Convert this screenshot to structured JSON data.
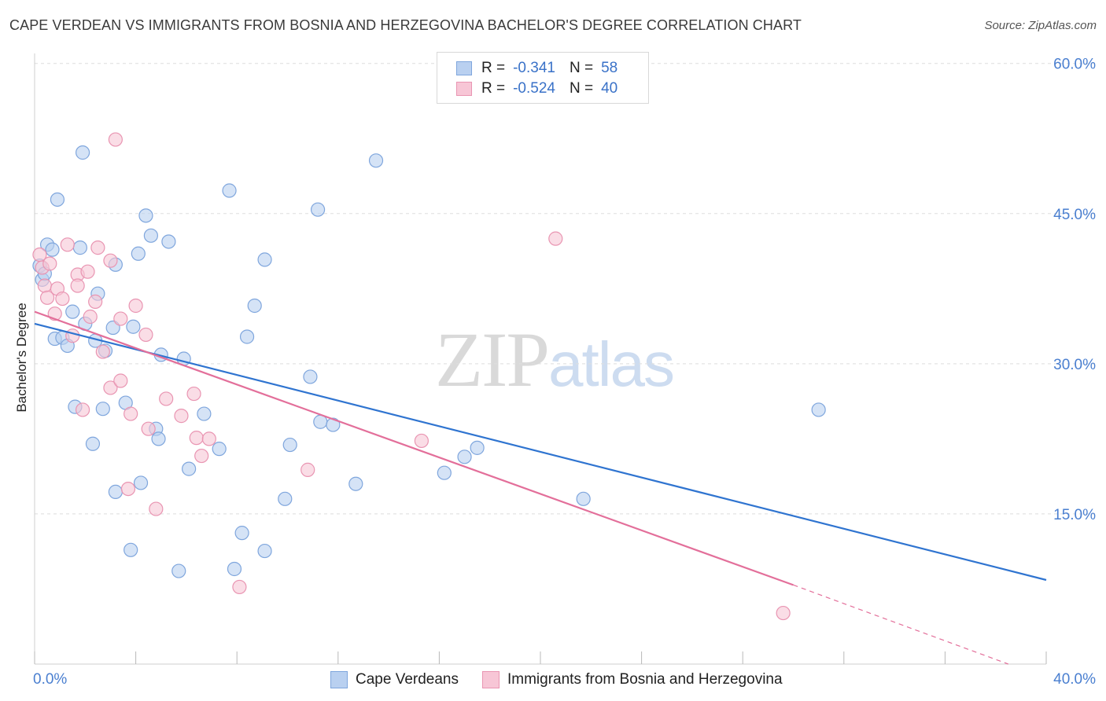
{
  "title": "CAPE VERDEAN VS IMMIGRANTS FROM BOSNIA AND HERZEGOVINA BACHELOR'S DEGREE CORRELATION CHART",
  "source": "Source: ZipAtlas.com",
  "watermark": {
    "zip": "ZIP",
    "atlas": "atlas"
  },
  "legend": {
    "rows": [
      {
        "r_label": "R =",
        "r_value": "-0.341",
        "n_label": "N =",
        "n_value": "58"
      },
      {
        "r_label": "R =",
        "r_value": "-0.524",
        "n_label": "N =",
        "n_value": "40"
      }
    ]
  },
  "colors": {
    "blue_fill": "#b9d0f0",
    "blue_stroke": "#7fa6dd",
    "blue_line": "#2f74d0",
    "pink_fill": "#f7c6d6",
    "pink_stroke": "#e995b2",
    "pink_line": "#e36f9a",
    "grid": "#dedede",
    "axis_text": "#4a7fd0"
  },
  "chart_data": {
    "type": "scatter",
    "title": "CAPE VERDEAN VS IMMIGRANTS FROM BOSNIA AND HERZEGOVINA BACHELOR'S DEGREE CORRELATION CHART",
    "xlabel": "",
    "ylabel": "Bachelor's Degree",
    "xlim": [
      0,
      40
    ],
    "ylim": [
      0,
      61
    ],
    "x_tick_labels": [
      "0.0%",
      "40.0%"
    ],
    "y_ticks": [
      15,
      30,
      45,
      60
    ],
    "y_tick_labels": [
      "15.0%",
      "30.0%",
      "45.0%",
      "60.0%"
    ],
    "grid": "horizontal",
    "series": [
      {
        "name": "Cape Verdeans",
        "color": "blue",
        "points": [
          [
            0.2,
            39.8
          ],
          [
            0.3,
            38.4
          ],
          [
            0.4,
            39.0
          ],
          [
            0.5,
            41.9
          ],
          [
            0.7,
            41.4
          ],
          [
            0.8,
            32.5
          ],
          [
            0.9,
            46.4
          ],
          [
            1.1,
            32.6
          ],
          [
            1.3,
            31.8
          ],
          [
            1.5,
            35.2
          ],
          [
            1.6,
            25.7
          ],
          [
            1.8,
            41.6
          ],
          [
            1.9,
            51.1
          ],
          [
            2.0,
            34.0
          ],
          [
            2.3,
            22.0
          ],
          [
            2.4,
            32.3
          ],
          [
            2.5,
            37.0
          ],
          [
            2.7,
            25.5
          ],
          [
            2.8,
            31.3
          ],
          [
            3.1,
            33.6
          ],
          [
            3.2,
            17.2
          ],
          [
            3.2,
            39.9
          ],
          [
            3.6,
            26.1
          ],
          [
            3.8,
            11.4
          ],
          [
            3.9,
            33.7
          ],
          [
            4.1,
            41.0
          ],
          [
            4.2,
            18.1
          ],
          [
            4.4,
            44.8
          ],
          [
            4.6,
            42.8
          ],
          [
            4.8,
            23.5
          ],
          [
            4.9,
            22.5
          ],
          [
            5.0,
            30.9
          ],
          [
            5.3,
            42.2
          ],
          [
            5.7,
            9.3
          ],
          [
            5.9,
            30.5
          ],
          [
            6.1,
            19.5
          ],
          [
            6.7,
            25.0
          ],
          [
            7.3,
            21.5
          ],
          [
            7.7,
            47.3
          ],
          [
            7.9,
            9.5
          ],
          [
            8.2,
            13.1
          ],
          [
            8.4,
            32.7
          ],
          [
            8.7,
            35.8
          ],
          [
            9.1,
            11.3
          ],
          [
            9.1,
            40.4
          ],
          [
            9.9,
            16.5
          ],
          [
            10.1,
            21.9
          ],
          [
            10.9,
            28.7
          ],
          [
            11.2,
            45.4
          ],
          [
            11.3,
            24.2
          ],
          [
            11.8,
            23.9
          ],
          [
            12.7,
            18.0
          ],
          [
            13.5,
            50.3
          ],
          [
            16.2,
            19.1
          ],
          [
            17.0,
            20.7
          ],
          [
            17.5,
            21.6
          ],
          [
            21.7,
            16.5
          ],
          [
            31.0,
            25.4
          ]
        ],
        "trendline": {
          "x": [
            0,
            40
          ],
          "y": [
            34.0,
            8.4
          ]
        }
      },
      {
        "name": "Immigrants from Bosnia and Herzegovina",
        "color": "pink",
        "points": [
          [
            0.2,
            40.9
          ],
          [
            0.3,
            39.6
          ],
          [
            0.4,
            37.8
          ],
          [
            0.5,
            36.6
          ],
          [
            0.6,
            40.0
          ],
          [
            0.8,
            35.0
          ],
          [
            0.9,
            37.5
          ],
          [
            1.1,
            36.5
          ],
          [
            1.3,
            41.9
          ],
          [
            1.5,
            32.8
          ],
          [
            1.7,
            38.9
          ],
          [
            1.7,
            37.8
          ],
          [
            1.9,
            25.4
          ],
          [
            2.1,
            39.2
          ],
          [
            2.2,
            34.7
          ],
          [
            2.4,
            36.2
          ],
          [
            2.5,
            41.6
          ],
          [
            2.7,
            31.2
          ],
          [
            3.0,
            40.3
          ],
          [
            3.0,
            27.6
          ],
          [
            3.2,
            52.4
          ],
          [
            3.4,
            28.3
          ],
          [
            3.4,
            34.5
          ],
          [
            3.7,
            17.5
          ],
          [
            3.8,
            25.0
          ],
          [
            4.0,
            35.8
          ],
          [
            4.4,
            32.9
          ],
          [
            4.5,
            23.5
          ],
          [
            4.8,
            15.5
          ],
          [
            5.2,
            26.5
          ],
          [
            5.8,
            24.8
          ],
          [
            6.3,
            27.0
          ],
          [
            6.4,
            22.6
          ],
          [
            6.6,
            20.8
          ],
          [
            6.9,
            22.5
          ],
          [
            8.1,
            7.7
          ],
          [
            10.8,
            19.4
          ],
          [
            15.3,
            22.3
          ],
          [
            20.6,
            42.5
          ],
          [
            29.6,
            5.1
          ]
        ],
        "trendline": {
          "x": [
            0,
            30.0
          ],
          "y": [
            35.2,
            7.9
          ]
        },
        "trendline_extension": {
          "x": [
            30.0,
            38.5
          ],
          "y": [
            7.9,
            0.0
          ]
        }
      }
    ]
  },
  "bottom_legend": {
    "items": [
      {
        "label": "Cape Verdeans"
      },
      {
        "label": "Immigrants from Bosnia and Herzegovina"
      }
    ]
  }
}
